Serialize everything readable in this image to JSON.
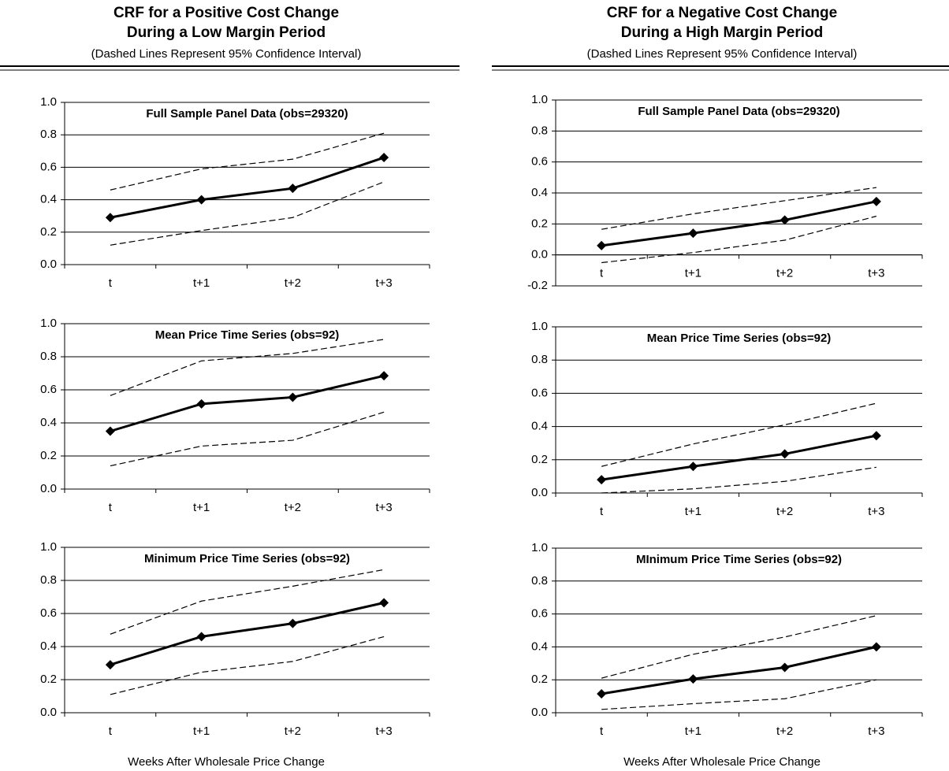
{
  "columns": [
    {
      "title": [
        "CRF for a Positive Cost Change",
        "During a Low Margin Period"
      ],
      "subtitle": "(Dashed Lines Represent 95% Confidence Interval)",
      "xlabel": "Weeks After Wholesale Price Change"
    },
    {
      "title": [
        "CRF for a Negative Cost Change",
        "During a High Margin Period"
      ],
      "subtitle": "(Dashed Lines Represent 95% Confidence Interval)",
      "xlabel": "Weeks After Wholesale Price Change"
    }
  ],
  "chart_data": [
    {
      "type": "line",
      "title": "Full Sample Panel Data (obs=29320)",
      "categories": [
        "t",
        "t+1",
        "t+2",
        "t+3"
      ],
      "series": [
        {
          "color": "#000000",
          "style": "solid",
          "values": [
            0.29,
            0.4,
            0.47,
            0.66
          ]
        },
        {
          "color": "#000000",
          "style": "dashed",
          "values": [
            0.46,
            0.59,
            0.65,
            0.81
          ]
        },
        {
          "color": "#000000",
          "style": "dashed",
          "values": [
            0.12,
            0.21,
            0.29,
            0.51
          ]
        }
      ],
      "ylim": [
        0,
        1
      ],
      "yticks": [
        {
          "value": 0,
          "label": "0.0"
        },
        0.2,
        0.4,
        0.6,
        0.8,
        {
          "value": 1,
          "label": "1.0"
        }
      ],
      "grid": true
    },
    {
      "type": "line",
      "title": "Mean Price Time Series (obs=92)",
      "categories": [
        "t",
        "t+1",
        "t+2",
        "t+3"
      ],
      "series": [
        {
          "color": "#000000",
          "style": "solid",
          "values": [
            0.35,
            0.515,
            0.555,
            0.685
          ]
        },
        {
          "color": "#000000",
          "style": "dashed",
          "values": [
            0.565,
            0.775,
            0.82,
            0.905
          ]
        },
        {
          "color": "#000000",
          "style": "dashed",
          "values": [
            0.14,
            0.26,
            0.295,
            0.465
          ]
        }
      ],
      "ylim": [
        0,
        1
      ],
      "yticks": [
        {
          "value": 0,
          "label": "0.0"
        },
        0.2,
        0.4,
        0.6,
        0.8,
        {
          "value": 1,
          "label": "1.0"
        }
      ],
      "grid": true
    },
    {
      "type": "line",
      "title": "Minimum Price Time Series (obs=92)",
      "categories": [
        "t",
        "t+1",
        "t+2",
        "t+3"
      ],
      "series": [
        {
          "color": "#000000",
          "style": "solid",
          "values": [
            0.29,
            0.46,
            0.54,
            0.665
          ]
        },
        {
          "color": "#000000",
          "style": "dashed",
          "values": [
            0.475,
            0.675,
            0.765,
            0.865
          ]
        },
        {
          "color": "#000000",
          "style": "dashed",
          "values": [
            0.11,
            0.245,
            0.31,
            0.46
          ]
        }
      ],
      "ylim": [
        0,
        1
      ],
      "yticks": [
        {
          "value": 0,
          "label": "0.0"
        },
        0.2,
        0.4,
        0.6,
        0.8,
        {
          "value": 1,
          "label": "1.0"
        }
      ],
      "grid": true
    },
    {
      "type": "line",
      "title": "Full Sample Panel Data (obs=29320)",
      "categories": [
        "t",
        "t+1",
        "t+2",
        "t+3"
      ],
      "series": [
        {
          "color": "#000000",
          "style": "solid",
          "values": [
            0.06,
            0.14,
            0.225,
            0.345
          ]
        },
        {
          "color": "#000000",
          "style": "dashed",
          "values": [
            0.165,
            0.265,
            0.35,
            0.435
          ]
        },
        {
          "color": "#000000",
          "style": "dashed",
          "values": [
            -0.05,
            0.015,
            0.095,
            0.25
          ]
        }
      ],
      "ylim": [
        -0.2,
        1
      ],
      "yticks": [
        -0.2,
        {
          "value": 0,
          "label": "0.0"
        },
        0.2,
        0.4,
        0.6,
        0.8,
        {
          "value": 1,
          "label": "1.0"
        }
      ],
      "grid": true
    },
    {
      "type": "line",
      "title": "Mean Price Time Series (obs=92)",
      "categories": [
        "t",
        "t+1",
        "t+2",
        "t+3"
      ],
      "series": [
        {
          "color": "#000000",
          "style": "solid",
          "values": [
            0.08,
            0.16,
            0.235,
            0.345
          ]
        },
        {
          "color": "#000000",
          "style": "dashed",
          "values": [
            0.16,
            0.295,
            0.41,
            0.54
          ]
        },
        {
          "color": "#000000",
          "style": "dashed",
          "values": [
            0.0,
            0.025,
            0.07,
            0.155
          ]
        }
      ],
      "ylim": [
        0,
        1
      ],
      "yticks": [
        {
          "value": 0,
          "label": "0.0"
        },
        0.2,
        0.4,
        0.6,
        0.8,
        {
          "value": 1,
          "label": "1.0"
        }
      ],
      "grid": true
    },
    {
      "type": "line",
      "title": "MInimum Price Time Series (obs=92)",
      "categories": [
        "t",
        "t+1",
        "t+2",
        "t+3"
      ],
      "series": [
        {
          "color": "#000000",
          "style": "solid",
          "values": [
            0.115,
            0.205,
            0.275,
            0.4
          ]
        },
        {
          "color": "#000000",
          "style": "dashed",
          "values": [
            0.21,
            0.355,
            0.46,
            0.59
          ]
        },
        {
          "color": "#000000",
          "style": "dashed",
          "values": [
            0.02,
            0.055,
            0.085,
            0.2
          ]
        }
      ],
      "ylim": [
        0,
        1
      ],
      "yticks": [
        {
          "value": 0,
          "label": "0.0"
        },
        0.2,
        0.4,
        0.6,
        0.8,
        {
          "value": 1,
          "label": "1.0"
        }
      ],
      "grid": true
    }
  ]
}
